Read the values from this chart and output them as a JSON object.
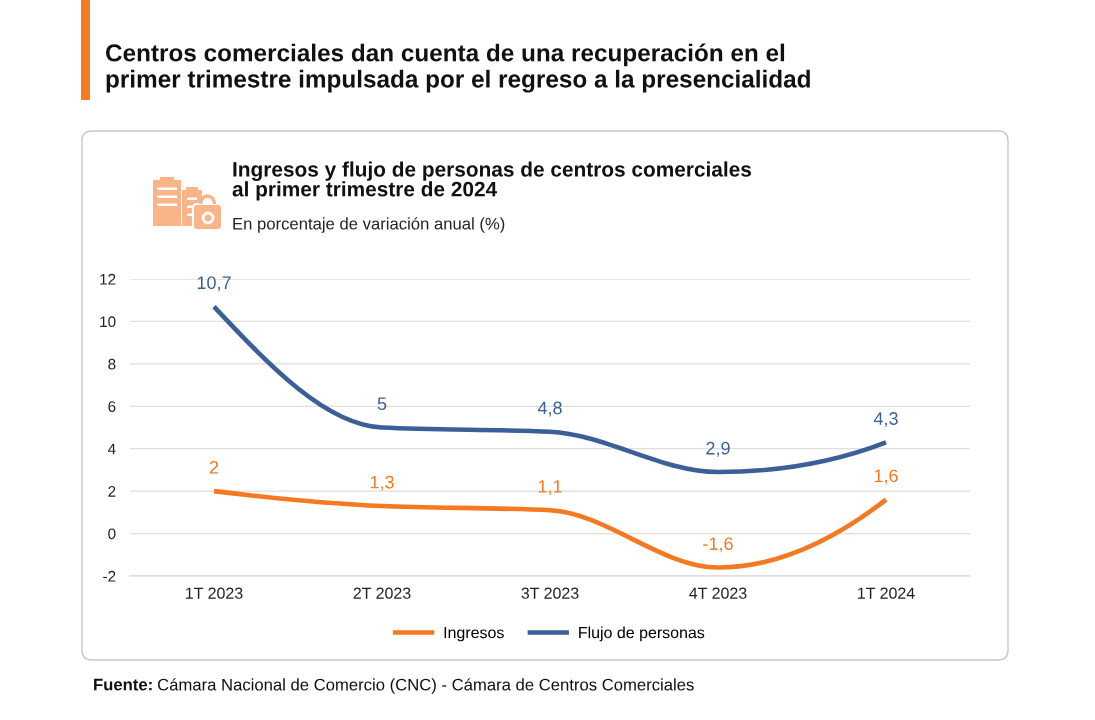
{
  "chart_data": {
    "type": "line",
    "title": "Centros comerciales dan cuenta de una recuperación en el\nprimer trimestre impulsada por el regreso a la presencialidad",
    "subtitle": "Ingresos y flujo de personas de centros comerciales\nal primer trimestre de 2024",
    "ylabel": "En porcentaje de variación anual (%)",
    "annotations": [
      "Fuente: Cámara Nacional de Comercio (CNC) - Cámara de Centros Comerciales"
    ],
    "categories": [
      "1T 2023",
      "2T 2023",
      "3T 2023",
      "4T 2023",
      "1T 2024"
    ],
    "series": [
      {
        "name": "Ingresos",
        "color": "#f47920",
        "values": [
          2,
          1.3,
          1.1,
          -1.6,
          1.6
        ],
        "value_labels": [
          "2",
          "1,3",
          "1,1",
          "-1,6",
          "1,6"
        ]
      },
      {
        "name": "Flujo de personas",
        "color": "#3b5f97",
        "values": [
          10.7,
          5,
          4.8,
          2.9,
          4.3
        ],
        "value_labels": [
          "10,7",
          "5",
          "4,8",
          "2,9",
          "4,3"
        ]
      }
    ],
    "ylim": [
      -2,
      12
    ],
    "yticks": [
      -2,
      0,
      2,
      4,
      6,
      8,
      10,
      12
    ],
    "grid": "y",
    "legend": "bottom",
    "line_style": "solid"
  }
}
